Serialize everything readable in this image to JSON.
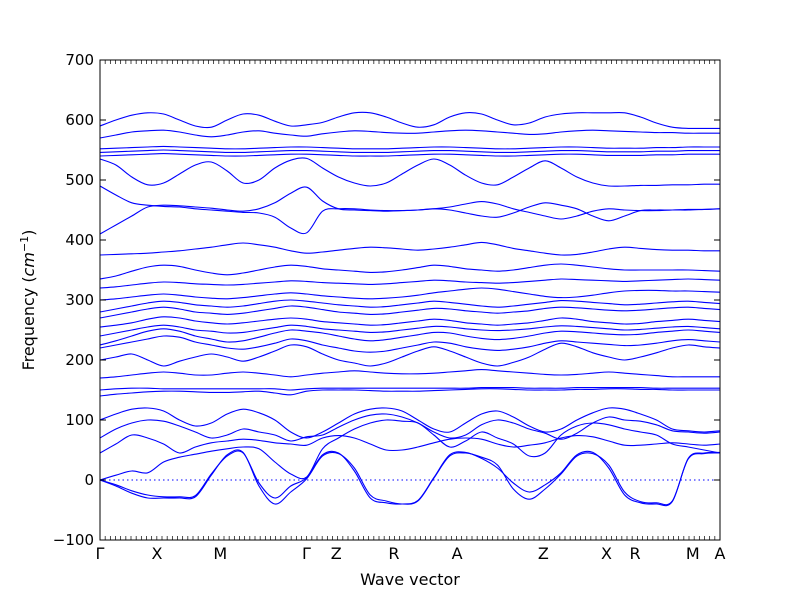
{
  "chart_data": {
    "type": "line",
    "title": "",
    "xlabel": "Wave vector",
    "ylabel": "Frequency ($cm^{-1}$)",
    "ylabel_parts": {
      "text": "Frequency (",
      "unit_base": "cm",
      "unit_exp": "−1",
      "close": ")"
    },
    "ylim": [
      -100,
      700
    ],
    "y_ticks": [
      -100,
      0,
      100,
      200,
      300,
      400,
      500,
      600,
      700
    ],
    "high_symmetry_points": [
      "Γ",
      "X",
      "M",
      "Γ",
      "Z",
      "R",
      "A",
      "Z",
      "X",
      "R",
      "M",
      "A"
    ],
    "path_distance": [
      0,
      0.092,
      0.194,
      0.333,
      0.381,
      0.474,
      0.576,
      0.715,
      0.817,
      0.863,
      0.956,
      1.0
    ],
    "zero_line": 0,
    "grid": false,
    "line_color": "#0000ff",
    "series": [
      {
        "values": [
          0,
          -10,
          -22,
          -30,
          -30,
          -30,
          -28,
          8,
          42,
          46,
          -10,
          -40,
          -20,
          2,
          40,
          44,
          20,
          -25,
          -35,
          -40,
          -35,
          3,
          40,
          45,
          38,
          25,
          -15,
          -32,
          -15,
          10,
          40,
          44,
          25,
          -20,
          -36,
          -38,
          -35,
          35,
          44,
          45
        ]
      },
      {
        "values": [
          0,
          -8,
          -18,
          -25,
          -28,
          -28,
          -26,
          10,
          40,
          45,
          -5,
          -30,
          -10,
          4,
          42,
          45,
          15,
          -30,
          -38,
          -40,
          -34,
          4,
          42,
          46,
          36,
          20,
          -5,
          -20,
          -8,
          12,
          42,
          46,
          20,
          -25,
          -38,
          -40,
          -36,
          36,
          45,
          46
        ]
      },
      {
        "values": [
          0,
          8,
          15,
          12,
          30,
          38,
          43,
          48,
          52,
          55,
          52,
          30,
          10,
          5,
          52,
          70,
          85,
          95,
          100,
          98,
          95,
          75,
          55,
          65,
          80,
          70,
          60,
          40,
          45,
          75,
          90,
          95,
          92,
          85,
          80,
          75,
          60,
          55,
          50,
          45
        ]
      },
      {
        "values": [
          45,
          60,
          75,
          70,
          60,
          45,
          55,
          62,
          65,
          68,
          66,
          62,
          60,
          58,
          70,
          74,
          70,
          60,
          50,
          50,
          55,
          62,
          68,
          70,
          68,
          60,
          55,
          58,
          62,
          70,
          74,
          72,
          65,
          58,
          58,
          60,
          62,
          60,
          58,
          60
        ]
      },
      {
        "values": [
          70,
          85,
          95,
          100,
          98,
          90,
          80,
          70,
          75,
          85,
          80,
          75,
          65,
          72,
          75,
          88,
          100,
          108,
          110,
          105,
          95,
          80,
          70,
          75,
          92,
          100,
          95,
          85,
          78,
          68,
          78,
          95,
          105,
          100,
          98,
          92,
          82,
          80,
          78,
          80
        ]
      },
      {
        "values": [
          100,
          110,
          118,
          120,
          115,
          100,
          90,
          95,
          110,
          118,
          112,
          100,
          80,
          70,
          80,
          95,
          110,
          118,
          120,
          115,
          100,
          85,
          80,
          95,
          110,
          115,
          105,
          90,
          80,
          85,
          100,
          112,
          120,
          118,
          110,
          100,
          85,
          82,
          80,
          82
        ]
      },
      {
        "values": [
          140,
          143,
          145,
          147,
          148,
          148,
          147,
          146,
          146,
          147,
          148,
          145,
          142,
          148,
          150,
          150,
          150,
          149,
          148,
          148,
          148,
          149,
          150,
          151,
          152,
          152,
          151,
          150,
          150,
          150,
          151,
          151,
          152,
          152,
          151,
          151,
          150,
          150,
          150,
          150
        ]
      },
      {
        "values": [
          150,
          152,
          153,
          153,
          152,
          152,
          152,
          152,
          152,
          152,
          152,
          152,
          150,
          152,
          153,
          153,
          153,
          153,
          153,
          153,
          153,
          153,
          153,
          153,
          154,
          154,
          154,
          153,
          153,
          153,
          154,
          154,
          154,
          154,
          154,
          153,
          153,
          153,
          153,
          153
        ]
      },
      {
        "values": [
          170,
          172,
          175,
          178,
          180,
          178,
          175,
          175,
          178,
          180,
          178,
          175,
          172,
          175,
          178,
          180,
          182,
          180,
          178,
          177,
          177,
          178,
          180,
          182,
          184,
          182,
          180,
          178,
          176,
          175,
          176,
          178,
          180,
          178,
          176,
          174,
          172,
          172,
          172,
          172
        ]
      },
      {
        "values": [
          200,
          205,
          210,
          200,
          190,
          198,
          205,
          210,
          205,
          198,
          205,
          215,
          225,
          222,
          210,
          200,
          195,
          190,
          195,
          205,
          215,
          222,
          215,
          205,
          195,
          190,
          196,
          205,
          218,
          228,
          222,
          212,
          205,
          200,
          205,
          212,
          220,
          225,
          222,
          220
        ]
      },
      {
        "values": [
          220,
          225,
          230,
          235,
          240,
          238,
          230,
          225,
          220,
          218,
          222,
          228,
          235,
          232,
          225,
          220,
          215,
          213,
          215,
          220,
          225,
          230,
          228,
          222,
          218,
          216,
          218,
          222,
          228,
          232,
          230,
          228,
          226,
          224,
          225,
          228,
          232,
          234,
          232,
          230
        ]
      },
      {
        "values": [
          225,
          232,
          240,
          248,
          252,
          248,
          240,
          235,
          230,
          232,
          238,
          245,
          250,
          248,
          245,
          240,
          235,
          232,
          234,
          238,
          242,
          246,
          245,
          240,
          236,
          234,
          236,
          240,
          245,
          248,
          247,
          245,
          243,
          242,
          243,
          246,
          248,
          250,
          248,
          246
        ]
      },
      {
        "values": [
          240,
          245,
          250,
          255,
          258,
          255,
          250,
          248,
          245,
          246,
          250,
          254,
          258,
          256,
          252,
          250,
          248,
          246,
          247,
          250,
          253,
          256,
          255,
          252,
          250,
          249,
          250,
          252,
          255,
          257,
          256,
          254,
          252,
          250,
          251,
          253,
          255,
          256,
          254,
          252
        ]
      },
      {
        "values": [
          255,
          258,
          262,
          268,
          272,
          270,
          265,
          262,
          260,
          262,
          265,
          268,
          270,
          268,
          264,
          262,
          260,
          258,
          259,
          262,
          265,
          268,
          266,
          262,
          260,
          258,
          260,
          262,
          266,
          270,
          268,
          264,
          262,
          260,
          261,
          264,
          266,
          268,
          266,
          264
        ]
      },
      {
        "values": [
          270,
          275,
          280,
          285,
          288,
          285,
          280,
          278,
          276,
          278,
          282,
          286,
          290,
          288,
          284,
          280,
          278,
          276,
          277,
          280,
          283,
          286,
          285,
          282,
          280,
          278,
          280,
          282,
          286,
          288,
          287,
          285,
          283,
          282,
          283,
          285,
          287,
          288,
          286,
          284
        ]
      },
      {
        "values": [
          280,
          285,
          290,
          295,
          298,
          296,
          292,
          290,
          288,
          290,
          294,
          298,
          300,
          298,
          295,
          292,
          290,
          288,
          289,
          292,
          295,
          298,
          296,
          293,
          290,
          288,
          290,
          293,
          296,
          299,
          298,
          296,
          294,
          292,
          293,
          295,
          297,
          298,
          296,
          294
        ]
      },
      {
        "values": [
          300,
          302,
          305,
          308,
          310,
          308,
          305,
          303,
          302,
          304,
          307,
          310,
          312,
          310,
          307,
          305,
          303,
          302,
          303,
          305,
          308,
          312,
          315,
          318,
          320,
          318,
          314,
          310,
          306,
          304,
          305,
          308,
          312,
          315,
          316,
          316,
          315,
          315,
          314,
          313
        ]
      },
      {
        "values": [
          320,
          322,
          325,
          328,
          330,
          329,
          327,
          326,
          325,
          326,
          328,
          330,
          332,
          331,
          329,
          328,
          327,
          326,
          327,
          329,
          331,
          333,
          332,
          330,
          329,
          328,
          329,
          331,
          333,
          335,
          334,
          333,
          332,
          331,
          332,
          333,
          334,
          335,
          334,
          333
        ]
      },
      {
        "values": [
          335,
          340,
          348,
          355,
          358,
          356,
          350,
          345,
          342,
          345,
          350,
          355,
          358,
          356,
          352,
          350,
          348,
          346,
          347,
          350,
          354,
          358,
          356,
          352,
          350,
          348,
          350,
          354,
          358,
          360,
          358,
          355,
          352,
          350,
          350,
          350,
          350,
          350,
          349,
          348
        ]
      },
      {
        "values": [
          375,
          376,
          377,
          378,
          380,
          382,
          385,
          388,
          392,
          395,
          392,
          388,
          382,
          378,
          380,
          383,
          386,
          388,
          387,
          385,
          383,
          385,
          388,
          392,
          396,
          392,
          386,
          382,
          378,
          375,
          376,
          380,
          385,
          388,
          386,
          384,
          383,
          383,
          382,
          382
        ]
      },
      {
        "values": [
          410,
          425,
          440,
          455,
          458,
          457,
          455,
          453,
          450,
          448,
          452,
          462,
          478,
          488,
          465,
          452,
          450,
          449,
          448,
          449,
          450,
          452,
          455,
          460,
          464,
          460,
          452,
          446,
          440,
          435,
          440,
          448,
          452,
          450,
          449,
          449,
          450,
          450,
          451,
          452
        ]
      },
      {
        "values": [
          490,
          475,
          462,
          458,
          456,
          455,
          452,
          450,
          448,
          446,
          445,
          438,
          420,
          412,
          448,
          452,
          452,
          450,
          449,
          449,
          450,
          452,
          450,
          445,
          440,
          438,
          445,
          455,
          462,
          458,
          452,
          440,
          432,
          440,
          449,
          450,
          450,
          451,
          451,
          452
        ]
      },
      {
        "values": [
          535,
          525,
          505,
          492,
          495,
          510,
          525,
          530,
          515,
          495,
          500,
          520,
          533,
          536,
          520,
          505,
          495,
          490,
          495,
          510,
          525,
          535,
          525,
          508,
          495,
          492,
          505,
          520,
          532,
          520,
          505,
          495,
          490,
          490,
          491,
          491,
          492,
          492,
          493,
          493
        ]
      },
      {
        "values": [
          540,
          541,
          542,
          543,
          544,
          543,
          542,
          541,
          540,
          540,
          541,
          542,
          543,
          543,
          542,
          541,
          540,
          540,
          540,
          541,
          542,
          543,
          543,
          542,
          541,
          540,
          540,
          541,
          542,
          543,
          543,
          542,
          541,
          541,
          541,
          542,
          542,
          543,
          543,
          543
        ]
      },
      {
        "values": [
          546,
          547,
          548,
          549,
          550,
          549,
          548,
          547,
          546,
          546,
          547,
          548,
          549,
          549,
          548,
          547,
          546,
          546,
          546,
          547,
          548,
          549,
          549,
          548,
          547,
          546,
          546,
          547,
          548,
          549,
          549,
          548,
          547,
          547,
          547,
          548,
          548,
          549,
          549,
          549
        ]
      },
      {
        "values": [
          552,
          553,
          554,
          555,
          556,
          555,
          554,
          553,
          552,
          552,
          553,
          554,
          555,
          555,
          554,
          553,
          552,
          552,
          552,
          553,
          554,
          555,
          555,
          554,
          553,
          552,
          552,
          553,
          554,
          555,
          555,
          554,
          553,
          553,
          553,
          554,
          554,
          555,
          555,
          555
        ]
      },
      {
        "values": [
          570,
          575,
          580,
          582,
          583,
          580,
          575,
          572,
          575,
          580,
          582,
          578,
          575,
          573,
          577,
          580,
          582,
          581,
          579,
          578,
          578,
          580,
          582,
          583,
          582,
          580,
          578,
          576,
          577,
          580,
          582,
          583,
          582,
          581,
          580,
          579,
          579,
          578,
          578,
          578
        ]
      },
      {
        "values": [
          590,
          600,
          608,
          612,
          610,
          600,
          590,
          588,
          600,
          610,
          608,
          598,
          590,
          592,
          596,
          605,
          612,
          612,
          605,
          595,
          588,
          592,
          605,
          612,
          610,
          600,
          592,
          595,
          605,
          610,
          612,
          612,
          612,
          612,
          605,
          595,
          588,
          586,
          586,
          586
        ]
      }
    ]
  }
}
